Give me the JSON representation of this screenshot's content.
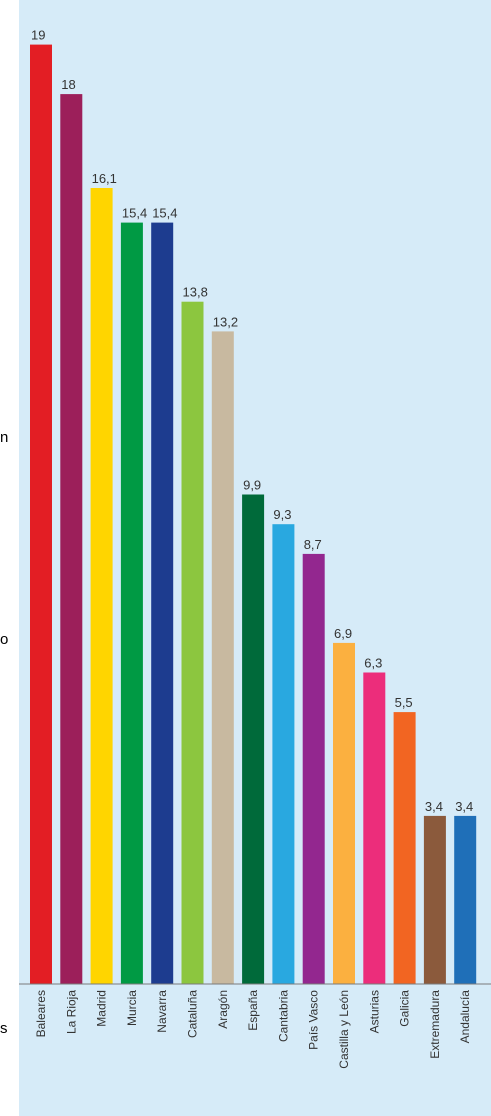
{
  "chart_data": {
    "type": "bar",
    "categories": [
      "Baleares",
      "La Rioja",
      "Madrid",
      "Murcia",
      "Navarra",
      "Cataluña",
      "Aragón",
      "España",
      "Cantabria",
      "País Vasco",
      "Castilla y León",
      "Asturias",
      "Galicia",
      "Extremadura",
      "Andalucía"
    ],
    "values": [
      19,
      18,
      16.1,
      15.4,
      15.4,
      13.8,
      13.2,
      9.9,
      9.3,
      8.7,
      6.9,
      6.3,
      5.5,
      3.4,
      3.4
    ],
    "value_labels": [
      "19",
      "18",
      "16,1",
      "15,4",
      "15,4",
      "13,8",
      "13,2",
      "9,9",
      "9,3",
      "8,7",
      "6,9",
      "6,3",
      "5,5",
      "3,4",
      "3,4"
    ],
    "ylim": [
      0,
      19.7
    ],
    "grid": false,
    "background": "#d6ebf8",
    "colors": [
      "#e31e24",
      "#9c1f5a",
      "#ffd500",
      "#009a44",
      "#1d3c8f",
      "#8cc63f",
      "#c8b9a0",
      "#006a3a",
      "#29a8e0",
      "#93278f",
      "#fbb040",
      "#ec2d7b",
      "#f26522",
      "#8b5a3c",
      "#1f6fb8"
    ]
  },
  "side_text": {
    "letter_1": "n",
    "letter_2": "o",
    "letter_3": "s"
  }
}
